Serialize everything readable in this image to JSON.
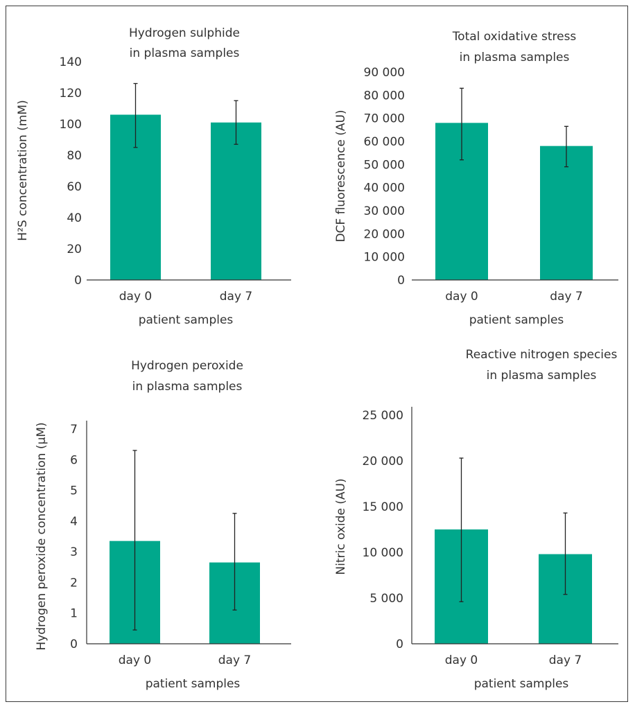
{
  "colors": {
    "bar": "#00a88c",
    "axis": "#333333",
    "error": "#222222",
    "frame": "#3a3a3a"
  },
  "chart_data": [
    {
      "type": "bar",
      "title_lines": [
        "Hydrogen sulphide",
        "in plasma samples"
      ],
      "categories": [
        "day 0",
        "day 7"
      ],
      "values": [
        106,
        101
      ],
      "errors": [
        [
          85,
          126
        ],
        [
          87,
          115
        ]
      ],
      "xlabel": "patient samples",
      "ylabel": "H²S concentration (mM)",
      "ylim": [
        0,
        140
      ],
      "yticks": [
        "0",
        "20",
        "40",
        "60",
        "80",
        "100",
        "120",
        "140"
      ],
      "grid": false
    },
    {
      "type": "bar",
      "title_lines": [
        "Total oxidative stress",
        "in plasma samples"
      ],
      "categories": [
        "day 0",
        "day 7"
      ],
      "values": [
        68000,
        58000
      ],
      "errors": [
        [
          52000,
          83000
        ],
        [
          49000,
          66500
        ]
      ],
      "xlabel": "patient samples",
      "ylabel": "DCF fluorescence (AU)",
      "ylim": [
        0,
        90000
      ],
      "yticks": [
        "0",
        "10 000",
        "20 000",
        "30 000",
        "40 000",
        "50 000",
        "60 000",
        "70 000",
        "80 000",
        "90 000"
      ],
      "grid": false
    },
    {
      "type": "bar",
      "title_lines": [
        "Hydrogen peroxide",
        "in plasma samples"
      ],
      "categories": [
        "day 0",
        "day 7"
      ],
      "values": [
        3.35,
        2.65
      ],
      "errors": [
        [
          0.45,
          6.3
        ],
        [
          1.1,
          4.25
        ]
      ],
      "xlabel": "patient samples",
      "ylabel": "Hydrogen peroxide concentration (μM)",
      "ylim": [
        0,
        7
      ],
      "yticks": [
        "0",
        "1",
        "2",
        "3",
        "4",
        "5",
        "6",
        "7"
      ],
      "grid": false
    },
    {
      "type": "bar",
      "title_lines": [
        "Reactive nitrogen species",
        "in plasma samples"
      ],
      "categories": [
        "day 0",
        "day 7"
      ],
      "values": [
        12500,
        9800
      ],
      "errors": [
        [
          4600,
          20300
        ],
        [
          5400,
          14300
        ]
      ],
      "xlabel": "patient samples",
      "ylabel": "Nitric oxide (AU)",
      "ylim": [
        0,
        25000
      ],
      "yticks": [
        "0",
        "5 000",
        "10 000",
        "15 000",
        "20 000",
        "25 000"
      ],
      "grid": false
    }
  ]
}
